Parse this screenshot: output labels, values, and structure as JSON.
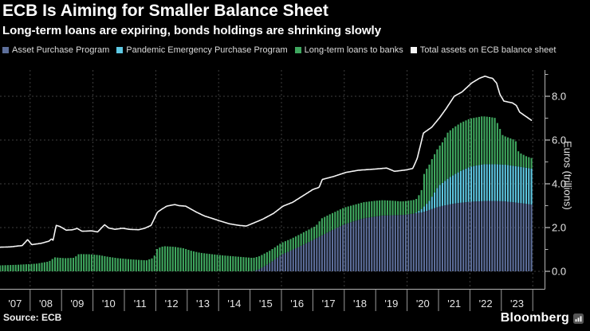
{
  "header": {
    "title": "ECB Is Aiming for Smaller Balance Sheet",
    "subtitle": "Long-term loans are expiring, bonds holdings are shrinking slowly"
  },
  "legend": {
    "items": [
      {
        "label": "Asset Purchase Program",
        "color": "#5d6f9b"
      },
      {
        "label": "Pandemic Emergency Purchase Program",
        "color": "#5ec9e4"
      },
      {
        "label": "Long-term loans to banks",
        "color": "#3fa75f"
      },
      {
        "label": "Total assets on ECB balance sheet",
        "color": "#f5f5f5"
      }
    ]
  },
  "axes": {
    "y_title": "Euros (trillions)",
    "y_ticks": [
      {
        "v": 0,
        "label": "0.0"
      },
      {
        "v": 2,
        "label": "2.0"
      },
      {
        "v": 4,
        "label": "4.0"
      },
      {
        "v": 6,
        "label": "6.0"
      },
      {
        "v": 8,
        "label": "8.0"
      }
    ],
    "y_minor_ticks": [
      1,
      3,
      5,
      7,
      9
    ],
    "grid_years": [
      2008,
      2010,
      2012,
      2014,
      2016,
      2018,
      2020,
      2022,
      2024
    ],
    "divider_years": [
      2008,
      2009,
      2010,
      2011,
      2012,
      2013,
      2014,
      2015,
      2016,
      2017,
      2018,
      2019,
      2020,
      2021,
      2022,
      2023,
      2024
    ],
    "x_year_labels": [
      "'07",
      "'08",
      "'09",
      "'10",
      "'11",
      "'12",
      "'13",
      "'14",
      "'15",
      "'16",
      "'17",
      "'18",
      "'19",
      "'20",
      "'21",
      "'22",
      "'23"
    ]
  },
  "footer": {
    "source": "Source: ECB",
    "brand": "Bloomberg"
  },
  "colors": {
    "background": "#000000",
    "app": "#5d6f9b",
    "pepp": "#5ec9e4",
    "loans": "#3fa75f",
    "total_line": "#f5f5f5",
    "grid": "#3e3e3e",
    "axis": "#b3b3b3",
    "divider": "#9a9a9a",
    "tick_text": "#e6e6e6"
  },
  "chart_data": {
    "type": "bar",
    "subtype": "stacked-monthly-bars-with-total-line",
    "title": "ECB Is Aiming for Smaller Balance Sheet",
    "ylabel": "Euros (trillions)",
    "units": "EUR trillions",
    "ylim": [
      0,
      9.2
    ],
    "x_range_years": [
      2007,
      2024
    ],
    "bar_frequency": "monthly",
    "legend_position": "top",
    "grid": "dashed, 2-trillion horizontal steps and even-year vertical lines",
    "note": "points are [decimal_year, eur_trillions] breakpoints read from the chart; bars are sampled monthly from them",
    "series": [
      {
        "name": "Asset Purchase Program",
        "role": "bar",
        "stack_order": 0,
        "color": "#5d6f9b",
        "points": [
          [
            2015.1,
            0.0
          ],
          [
            2015.3,
            0.1
          ],
          [
            2015.6,
            0.35
          ],
          [
            2016.0,
            0.76
          ],
          [
            2016.5,
            1.08
          ],
          [
            2017.0,
            1.43
          ],
          [
            2017.5,
            1.8
          ],
          [
            2018.0,
            2.15
          ],
          [
            2018.6,
            2.42
          ],
          [
            2019.2,
            2.55
          ],
          [
            2019.9,
            2.58
          ],
          [
            2020.5,
            2.7
          ],
          [
            2021.0,
            2.95
          ],
          [
            2021.5,
            3.1
          ],
          [
            2022.0,
            3.18
          ],
          [
            2022.6,
            3.22
          ],
          [
            2023.1,
            3.2
          ],
          [
            2023.6,
            3.12
          ],
          [
            2023.95,
            3.05
          ]
        ]
      },
      {
        "name": "Pandemic Emergency Purchase Program",
        "role": "bar",
        "stack_order": 1,
        "color": "#5ec9e4",
        "points": [
          [
            2020.25,
            0.0
          ],
          [
            2020.45,
            0.15
          ],
          [
            2020.7,
            0.4
          ],
          [
            2021.0,
            0.95
          ],
          [
            2021.3,
            1.2
          ],
          [
            2021.7,
            1.45
          ],
          [
            2022.0,
            1.6
          ],
          [
            2022.4,
            1.68
          ],
          [
            2023.0,
            1.68
          ],
          [
            2023.95,
            1.65
          ]
        ]
      },
      {
        "name": "Long-term loans to banks",
        "role": "bar",
        "stack_order": 2,
        "color": "#3fa75f",
        "points": [
          [
            2007.0,
            0.27
          ],
          [
            2007.6,
            0.3
          ],
          [
            2008.2,
            0.35
          ],
          [
            2008.6,
            0.45
          ],
          [
            2008.78,
            0.64
          ],
          [
            2009.1,
            0.6
          ],
          [
            2009.4,
            0.62
          ],
          [
            2009.55,
            0.79
          ],
          [
            2009.9,
            0.78
          ],
          [
            2010.2,
            0.74
          ],
          [
            2010.5,
            0.66
          ],
          [
            2010.8,
            0.6
          ],
          [
            2011.2,
            0.55
          ],
          [
            2011.7,
            0.5
          ],
          [
            2011.93,
            0.62
          ],
          [
            2012.05,
            1.05
          ],
          [
            2012.25,
            1.15
          ],
          [
            2012.6,
            1.12
          ],
          [
            2012.9,
            1.05
          ],
          [
            2013.1,
            0.95
          ],
          [
            2013.4,
            0.85
          ],
          [
            2013.8,
            0.78
          ],
          [
            2014.2,
            0.72
          ],
          [
            2014.7,
            0.66
          ],
          [
            2015.2,
            0.6
          ],
          [
            2015.8,
            0.55
          ],
          [
            2016.3,
            0.53
          ],
          [
            2016.7,
            0.56
          ],
          [
            2017.1,
            0.58
          ],
          [
            2017.28,
            0.78
          ],
          [
            2017.9,
            0.77
          ],
          [
            2018.5,
            0.74
          ],
          [
            2019.0,
            0.72
          ],
          [
            2019.5,
            0.67
          ],
          [
            2019.8,
            0.62
          ],
          [
            2020.3,
            0.62
          ],
          [
            2020.45,
            0.8
          ],
          [
            2020.55,
            1.55
          ],
          [
            2020.8,
            1.72
          ],
          [
            2021.1,
            1.82
          ],
          [
            2021.3,
            2.12
          ],
          [
            2021.7,
            2.2
          ],
          [
            2022.4,
            2.2
          ],
          [
            2022.8,
            2.12
          ],
          [
            2022.92,
            1.75
          ],
          [
            2023.05,
            1.32
          ],
          [
            2023.45,
            1.18
          ],
          [
            2023.55,
            0.65
          ],
          [
            2023.8,
            0.52
          ],
          [
            2023.95,
            0.48
          ]
        ]
      },
      {
        "name": "Total assets on ECB balance sheet",
        "role": "line",
        "color": "#f5f5f5",
        "points": [
          [
            2007.0,
            1.1
          ],
          [
            2007.4,
            1.12
          ],
          [
            2007.75,
            1.18
          ],
          [
            2007.92,
            1.45
          ],
          [
            2008.05,
            1.22
          ],
          [
            2008.35,
            1.28
          ],
          [
            2008.6,
            1.38
          ],
          [
            2008.68,
            1.48
          ],
          [
            2008.73,
            1.42
          ],
          [
            2008.83,
            2.1
          ],
          [
            2008.95,
            2.05
          ],
          [
            2009.15,
            1.88
          ],
          [
            2009.35,
            1.9
          ],
          [
            2009.5,
            1.96
          ],
          [
            2009.65,
            1.83
          ],
          [
            2009.95,
            1.85
          ],
          [
            2010.15,
            1.8
          ],
          [
            2010.37,
            2.13
          ],
          [
            2010.5,
            1.98
          ],
          [
            2010.7,
            1.92
          ],
          [
            2010.95,
            1.97
          ],
          [
            2011.15,
            1.92
          ],
          [
            2011.45,
            1.9
          ],
          [
            2011.65,
            1.97
          ],
          [
            2011.85,
            2.1
          ],
          [
            2011.95,
            2.4
          ],
          [
            2012.05,
            2.7
          ],
          [
            2012.2,
            2.85
          ],
          [
            2012.35,
            2.98
          ],
          [
            2012.6,
            3.05
          ],
          [
            2012.75,
            3.0
          ],
          [
            2012.95,
            2.98
          ],
          [
            2013.1,
            2.86
          ],
          [
            2013.3,
            2.7
          ],
          [
            2013.55,
            2.53
          ],
          [
            2013.75,
            2.44
          ],
          [
            2014.05,
            2.3
          ],
          [
            2014.35,
            2.17
          ],
          [
            2014.65,
            2.1
          ],
          [
            2014.88,
            2.07
          ],
          [
            2015.1,
            2.2
          ],
          [
            2015.4,
            2.38
          ],
          [
            2015.75,
            2.65
          ],
          [
            2016.05,
            2.98
          ],
          [
            2016.35,
            3.15
          ],
          [
            2016.65,
            3.42
          ],
          [
            2017.0,
            3.74
          ],
          [
            2017.2,
            3.84
          ],
          [
            2017.3,
            4.2
          ],
          [
            2017.65,
            4.33
          ],
          [
            2018.05,
            4.52
          ],
          [
            2018.45,
            4.62
          ],
          [
            2018.95,
            4.67
          ],
          [
            2019.35,
            4.72
          ],
          [
            2019.6,
            4.57
          ],
          [
            2019.95,
            4.63
          ],
          [
            2020.18,
            4.7
          ],
          [
            2020.32,
            5.15
          ],
          [
            2020.52,
            6.32
          ],
          [
            2020.78,
            6.58
          ],
          [
            2021.05,
            7.05
          ],
          [
            2021.25,
            7.45
          ],
          [
            2021.5,
            8.0
          ],
          [
            2021.75,
            8.2
          ],
          [
            2022.05,
            8.6
          ],
          [
            2022.3,
            8.82
          ],
          [
            2022.48,
            8.92
          ],
          [
            2022.6,
            8.86
          ],
          [
            2022.72,
            8.82
          ],
          [
            2022.85,
            8.6
          ],
          [
            2022.95,
            8.1
          ],
          [
            2023.08,
            7.78
          ],
          [
            2023.35,
            7.7
          ],
          [
            2023.48,
            7.58
          ],
          [
            2023.58,
            7.28
          ],
          [
            2023.78,
            7.08
          ],
          [
            2023.96,
            6.9
          ]
        ]
      }
    ]
  }
}
